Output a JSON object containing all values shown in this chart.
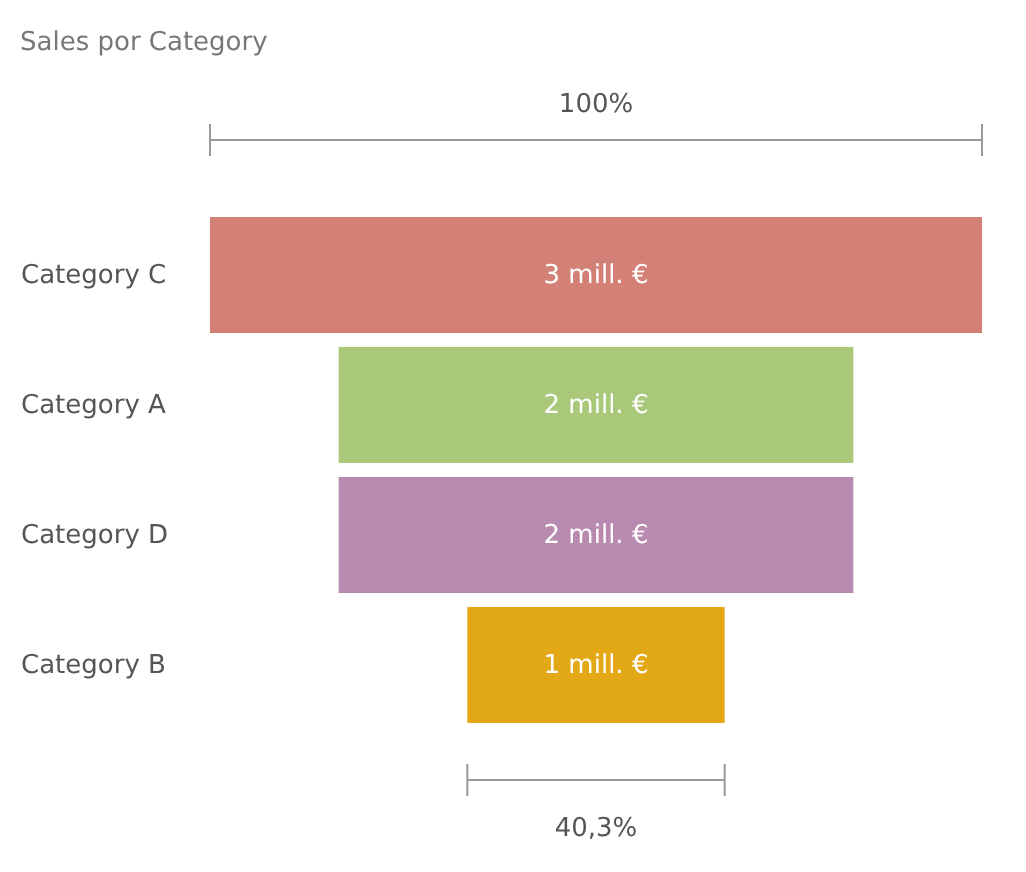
{
  "chart_data": {
    "type": "other",
    "title": "Sales por Category",
    "categories": [
      "Category C",
      "Category A",
      "Category D",
      "Category B"
    ],
    "values": [
      3,
      2,
      2,
      1
    ],
    "colors": [
      "#d38077",
      "#a9c879",
      "#b98aaf",
      "#e3a816"
    ],
    "value_labels": [
      "3 mill. €",
      "2 mill. €",
      "2 mill. €",
      "1 mill. €"
    ],
    "annotations": [
      "100%",
      "40,3%"
    ]
  }
}
